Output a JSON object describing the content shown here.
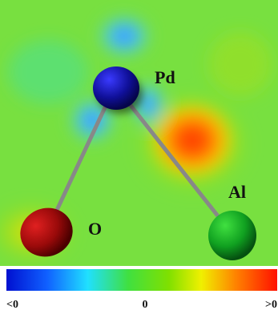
{
  "atoms": [
    {
      "label": "Pd"
    },
    {
      "label": "O"
    },
    {
      "label": "Al"
    }
  ],
  "colorbar": {
    "labels": [
      "<0",
      "0",
      ">0"
    ]
  }
}
